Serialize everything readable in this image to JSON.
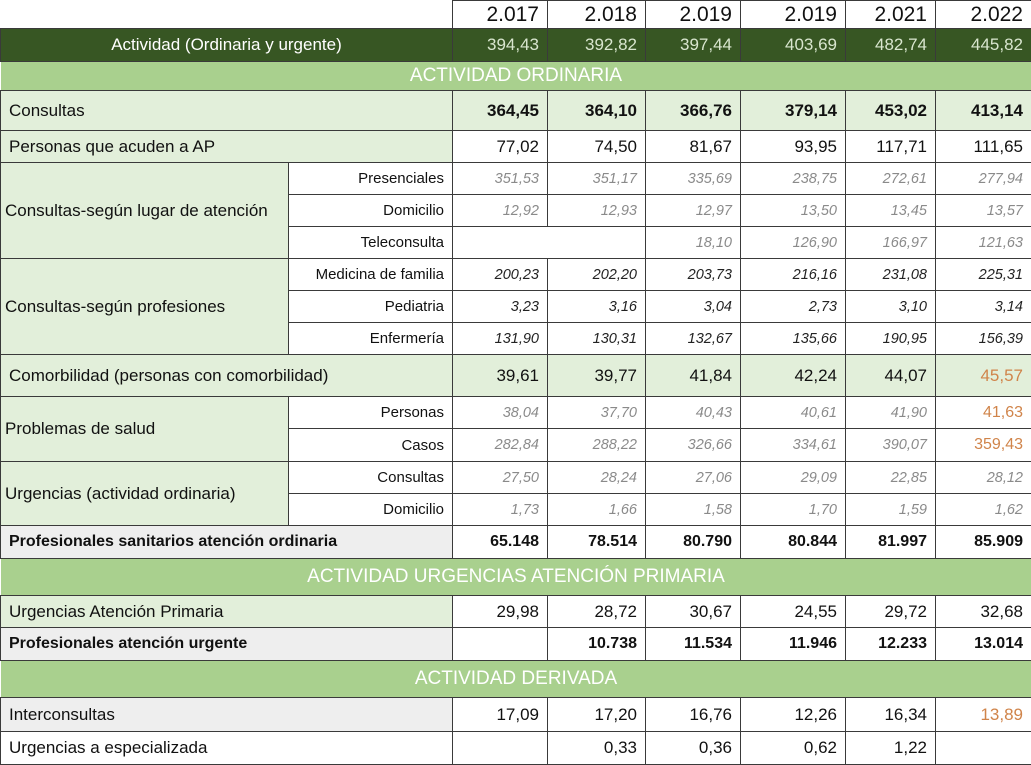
{
  "years": [
    "2.017",
    "2.018",
    "2.019",
    "2.019",
    "2.021",
    "2.022"
  ],
  "total": {
    "label": "Actividad (Ordinaria y urgente)",
    "values": [
      "394,43",
      "392,82",
      "397,44",
      "403,69",
      "482,74",
      "445,82"
    ]
  },
  "sections": {
    "ordinaria": "ACTIVIDAD ORDINARIA",
    "urgencias": "ACTIVIDAD URGENCIAS ATENCIÓN PRIMARIA",
    "derivada": "ACTIVIDAD DERIVADA"
  },
  "consultas": {
    "label": "Consultas",
    "values": [
      "364,45",
      "364,10",
      "366,76",
      "379,14",
      "453,02",
      "413,14"
    ]
  },
  "personas_ap": {
    "label": "Personas que acuden a AP",
    "values": [
      "77,02",
      "74,50",
      "81,67",
      "93,95",
      "117,71",
      "111,65"
    ]
  },
  "lugar": {
    "label": "Consultas-según lugar de atención",
    "rows": [
      {
        "label": "Presenciales",
        "values": [
          "351,53",
          "351,17",
          "335,69",
          "238,75",
          "272,61",
          "277,94"
        ]
      },
      {
        "label": "Domicilio",
        "values": [
          "12,92",
          "12,93",
          "12,97",
          "13,50",
          "13,45",
          "13,57"
        ]
      },
      {
        "label": "Teleconsulta",
        "values": [
          "",
          "",
          "18,10",
          "126,90",
          "166,97",
          "121,63"
        ]
      }
    ]
  },
  "profesiones": {
    "label": "Consultas-según profesiones",
    "rows": [
      {
        "label": "Medicina de familia",
        "values": [
          "200,23",
          "202,20",
          "203,73",
          "216,16",
          "231,08",
          "225,31"
        ]
      },
      {
        "label": "Pediatria",
        "values": [
          "3,23",
          "3,16",
          "3,04",
          "2,73",
          "3,10",
          "3,14"
        ]
      },
      {
        "label": "Enfermería",
        "values": [
          "131,90",
          "130,31",
          "132,67",
          "135,66",
          "190,95",
          "156,39"
        ]
      }
    ]
  },
  "comorbilidad": {
    "label": "Comorbilidad (personas con comorbilidad)",
    "values": [
      "39,61",
      "39,77",
      "41,84",
      "42,24",
      "44,07",
      "45,57"
    ]
  },
  "problemas": {
    "label": "Problemas de salud",
    "rows": [
      {
        "label": "Personas",
        "values": [
          "38,04",
          "37,70",
          "40,43",
          "40,61",
          "41,90",
          "41,63"
        ]
      },
      {
        "label": "Casos",
        "values": [
          "282,84",
          "288,22",
          "326,66",
          "334,61",
          "390,07",
          "359,43"
        ]
      }
    ]
  },
  "urg_ordinaria": {
    "label": "Urgencias (actividad ordinaria)",
    "rows": [
      {
        "label": "Consultas",
        "values": [
          "27,50",
          "28,24",
          "27,06",
          "29,09",
          "22,85",
          "28,12"
        ]
      },
      {
        "label": "Domicilio",
        "values": [
          "1,73",
          "1,66",
          "1,58",
          "1,70",
          "1,59",
          "1,62"
        ]
      }
    ]
  },
  "prof_ordinaria": {
    "label": "Profesionales sanitarios atención ordinaria",
    "values": [
      "65.148",
      "78.514",
      "80.790",
      "80.844",
      "81.997",
      "85.909"
    ]
  },
  "urg_ap": {
    "label": "Urgencias Atención Primaria",
    "values": [
      "29,98",
      "28,72",
      "30,67",
      "24,55",
      "29,72",
      "32,68"
    ]
  },
  "prof_urgente": {
    "label": "Profesionales atención urgente",
    "values": [
      "",
      "10.738",
      "11.534",
      "11.946",
      "12.233",
      "13.014"
    ]
  },
  "interconsultas": {
    "label": "Interconsultas",
    "values": [
      "17,09",
      "17,20",
      "16,76",
      "12,26",
      "16,34",
      "13,89"
    ]
  },
  "urg_especializada": {
    "label": "Urgencias a especializada",
    "values": [
      "",
      "0,33",
      "0,36",
      "0,62",
      "1,22",
      ""
    ]
  },
  "colors": {
    "dark_green": "#375623",
    "section_green": "#a9d08e",
    "light_green": "#e2efda",
    "highlight_orange": "#d0844a"
  }
}
